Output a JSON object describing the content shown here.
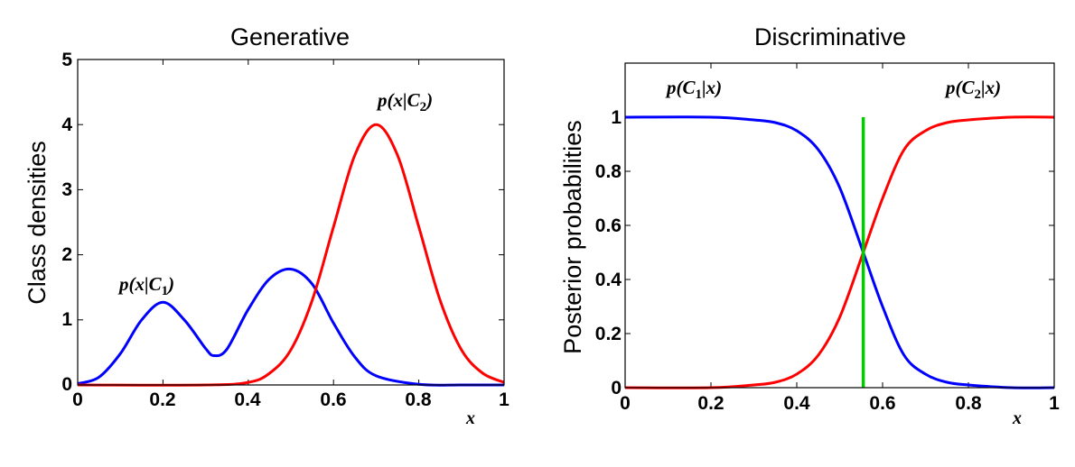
{
  "chart_data": [
    {
      "type": "line",
      "title": "Generative",
      "xlabel": "x",
      "ylabel": "Class densities",
      "xlim": [
        0,
        1
      ],
      "ylim": [
        0,
        5
      ],
      "x_ticks": [
        "0",
        "0.2",
        "0.4",
        "0.6",
        "0.8",
        "1"
      ],
      "y_ticks": [
        "0",
        "1",
        "2",
        "3",
        "4",
        "5"
      ],
      "series": [
        {
          "name": "p(x|C1)",
          "label_main": "p(x|C",
          "label_sub": "1",
          "label_end": ")",
          "color": "#0000ff",
          "x": [
            0,
            0.05,
            0.1,
            0.15,
            0.2,
            0.25,
            0.3,
            0.32,
            0.35,
            0.4,
            0.45,
            0.5,
            0.55,
            0.6,
            0.65,
            0.7,
            0.8,
            0.9,
            1.0
          ],
          "y": [
            0.02,
            0.12,
            0.48,
            1.0,
            1.27,
            1.0,
            0.56,
            0.45,
            0.55,
            1.16,
            1.63,
            1.78,
            1.55,
            0.95,
            0.43,
            0.14,
            0.01,
            0.0,
            0.0
          ]
        },
        {
          "name": "p(x|C2)",
          "label_main": "p(x|C",
          "label_sub": "2",
          "label_end": ")",
          "color": "#ff0000",
          "x": [
            0,
            0.3,
            0.4,
            0.45,
            0.5,
            0.55,
            0.6,
            0.65,
            0.7,
            0.75,
            0.8,
            0.85,
            0.9,
            0.95,
            1.0
          ],
          "y": [
            0.0,
            0.0,
            0.04,
            0.18,
            0.54,
            1.3,
            2.43,
            3.53,
            4.0,
            3.53,
            2.43,
            1.3,
            0.54,
            0.18,
            0.04
          ]
        }
      ]
    },
    {
      "type": "line",
      "title": "Discriminative",
      "xlabel": "x",
      "ylabel": "Posterior probabilities",
      "xlim": [
        0,
        1
      ],
      "ylim": [
        0,
        1.2
      ],
      "x_ticks": [
        "0",
        "0.2",
        "0.4",
        "0.6",
        "0.8",
        "1"
      ],
      "y_ticks": [
        "0",
        "0.2",
        "0.4",
        "0.6",
        "0.8",
        "1"
      ],
      "series": [
        {
          "name": "p(C1|x)",
          "label_main": "p(C",
          "label_sub": "1",
          "label_end": "|x)",
          "color": "#0000ff",
          "x": [
            0,
            0.2,
            0.3,
            0.35,
            0.4,
            0.45,
            0.5,
            0.555,
            0.6,
            0.65,
            0.7,
            0.75,
            0.8,
            0.9,
            1.0
          ],
          "y": [
            1.0,
            1.0,
            0.99,
            0.98,
            0.95,
            0.88,
            0.74,
            0.5,
            0.3,
            0.12,
            0.05,
            0.02,
            0.01,
            0.0,
            0.0
          ]
        },
        {
          "name": "p(C2|x)",
          "label_main": "p(C",
          "label_sub": "2",
          "label_end": "|x)",
          "color": "#ff0000",
          "x": [
            0,
            0.2,
            0.3,
            0.35,
            0.4,
            0.45,
            0.5,
            0.555,
            0.6,
            0.65,
            0.7,
            0.75,
            0.8,
            0.9,
            1.0
          ],
          "y": [
            0.0,
            0.0,
            0.01,
            0.02,
            0.05,
            0.12,
            0.26,
            0.5,
            0.7,
            0.88,
            0.95,
            0.98,
            0.99,
            1.0,
            1.0
          ]
        }
      ],
      "decision_boundary": {
        "x": 0.555,
        "y_range": [
          0,
          1.0
        ],
        "color": "#00cc00"
      }
    }
  ]
}
